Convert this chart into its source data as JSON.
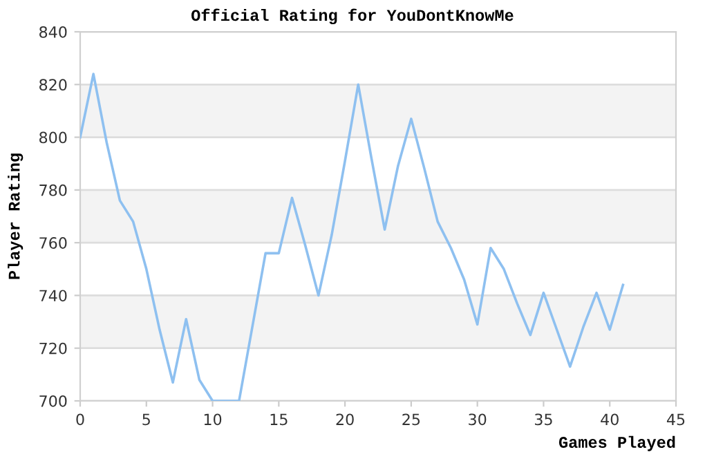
{
  "chart_data": {
    "type": "line",
    "title": "Official Rating for YouDontKnowMe",
    "xlabel": "Games Played",
    "ylabel": "Player Rating",
    "series": [
      {
        "color": "#8ec0f0",
        "x": [
          0,
          1,
          2,
          3,
          4,
          5,
          6,
          7,
          8,
          9,
          10,
          11,
          12,
          13,
          14,
          15,
          16,
          17,
          18,
          19,
          20,
          21,
          22,
          23,
          24,
          25,
          26,
          27,
          28,
          29,
          30,
          31,
          32,
          33,
          34,
          35,
          36,
          37,
          38,
          39,
          40,
          41
        ],
        "values": [
          800,
          824,
          798,
          776,
          768,
          750,
          727,
          707,
          731,
          708,
          700,
          700,
          700,
          728,
          756,
          756,
          777,
          759,
          740,
          763,
          791,
          820,
          792,
          765,
          789,
          807,
          788,
          768,
          758,
          746,
          729,
          758,
          750,
          737,
          725,
          741,
          727,
          713,
          728,
          741,
          727,
          744
        ]
      }
    ],
    "xlim": [
      0,
      45
    ],
    "xticks": [
      0,
      5,
      10,
      15,
      20,
      25,
      30,
      35,
      40,
      45
    ],
    "ylim": [
      700,
      840
    ],
    "yticks": [
      700,
      720,
      740,
      760,
      780,
      800,
      820,
      840
    ],
    "grid": "y",
    "marker": "none",
    "line_style": "solid",
    "legend": false
  }
}
